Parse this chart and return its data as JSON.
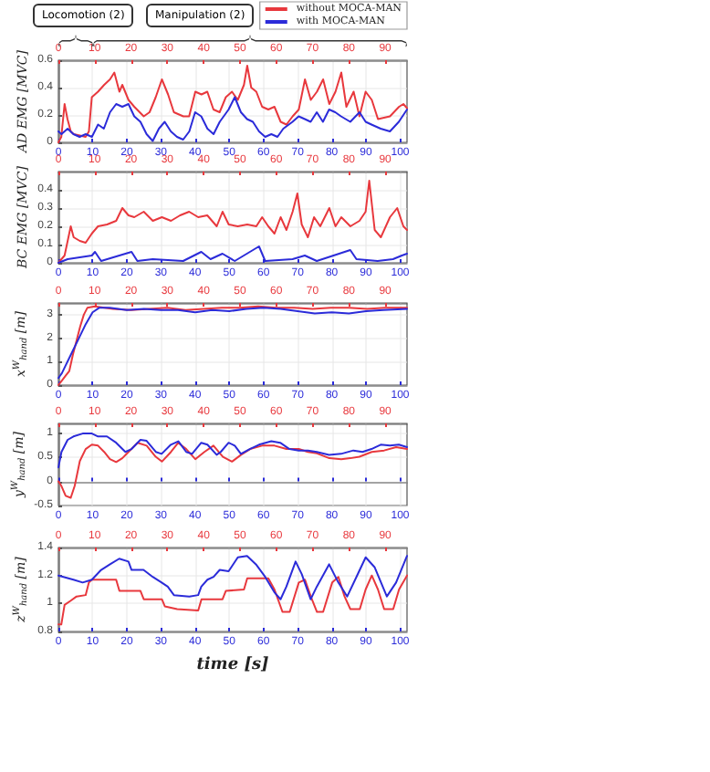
{
  "chart_data": [
    {
      "type": "line",
      "ylabel": "AD EMG [MVC]",
      "annotations": [
        "Locomotion (2)",
        "Manipulation (2)"
      ],
      "legend": "top right",
      "grid": true,
      "marker": "none",
      "xlim": [
        0,
        102
      ],
      "xticks": [
        0,
        10,
        20,
        30,
        40,
        50,
        60,
        70,
        80,
        90,
        100
      ],
      "x2lim": [
        0,
        96
      ],
      "x2ticks": [
        0,
        10,
        20,
        30,
        40,
        50,
        60,
        70,
        80,
        90
      ],
      "ylim": [
        0,
        0.6
      ],
      "yticks": [
        0,
        0.2,
        0.4,
        0.6
      ],
      "series": [
        {
          "name": "without MOCA-MAN",
          "color": "#e8383d",
          "axis": "x2",
          "x": [
            0,
            0.8,
            1.7,
            2.5,
            3.4,
            4.2,
            5.9,
            7.5,
            8.4,
            9.2,
            10.9,
            12.6,
            14.2,
            15.4,
            16.8,
            17.6,
            19.3,
            20.9,
            23.5,
            25.1,
            26.8,
            28.5,
            30.2,
            31.8,
            34.4,
            36,
            37.7,
            39.4,
            41,
            42.7,
            44.4,
            46.1,
            47.8,
            49.4,
            51.1,
            52,
            53.1,
            54.5,
            56.1,
            57.8,
            59.5,
            61.2,
            62.8,
            64.5,
            66.2,
            67.9,
            69.5,
            71.2,
            72.9,
            74.6,
            76.3,
            77.9,
            79.3,
            81.3,
            82.9,
            84.6,
            86.3,
            88,
            91.3,
            93.8,
            95,
            96
          ],
          "values": [
            0,
            0.04,
            0.28,
            0.17,
            0.08,
            0.06,
            0.05,
            0.04,
            0.08,
            0.33,
            0.37,
            0.42,
            0.46,
            0.51,
            0.37,
            0.42,
            0.31,
            0.26,
            0.19,
            0.22,
            0.33,
            0.46,
            0.35,
            0.22,
            0.19,
            0.19,
            0.37,
            0.35,
            0.37,
            0.24,
            0.22,
            0.33,
            0.37,
            0.31,
            0.42,
            0.56,
            0.4,
            0.37,
            0.26,
            0.24,
            0.26,
            0.15,
            0.13,
            0.19,
            0.24,
            0.46,
            0.31,
            0.37,
            0.46,
            0.28,
            0.37,
            0.51,
            0.26,
            0.37,
            0.19,
            0.37,
            0.31,
            0.17,
            0.19,
            0.26,
            0.28,
            0.25
          ]
        },
        {
          "name": "with MOCA-MAN",
          "color": "#2b2bd9",
          "x": [
            0,
            0.9,
            2.7,
            4.4,
            6.2,
            8,
            9.8,
            11.6,
            13.3,
            15.1,
            16.9,
            18.7,
            20.5,
            22.2,
            24,
            25.8,
            27.6,
            29.4,
            31.1,
            32.9,
            34.7,
            36.5,
            38.3,
            40,
            41.8,
            43.6,
            45.4,
            47.2,
            49.8,
            51.6,
            53.4,
            55.2,
            56.9,
            58.7,
            60.5,
            62.3,
            64.1,
            65.8,
            68.5,
            70.3,
            72.1,
            73.8,
            75.6,
            77.4,
            79.2,
            81,
            82.7,
            85.4,
            88.1,
            89.9,
            91.6,
            94.3,
            97,
            99.6,
            102
          ],
          "values": [
            0.08,
            0.06,
            0.1,
            0.06,
            0.04,
            0.06,
            0.04,
            0.13,
            0.1,
            0.22,
            0.28,
            0.26,
            0.28,
            0.19,
            0.15,
            0.06,
            0.01,
            0.1,
            0.15,
            0.08,
            0.04,
            0.02,
            0.08,
            0.22,
            0.19,
            0.1,
            0.06,
            0.15,
            0.24,
            0.33,
            0.22,
            0.17,
            0.15,
            0.08,
            0.04,
            0.06,
            0.04,
            0.1,
            0.15,
            0.19,
            0.17,
            0.15,
            0.22,
            0.15,
            0.24,
            0.22,
            0.19,
            0.15,
            0.22,
            0.15,
            0.13,
            0.1,
            0.08,
            0.15,
            0.24
          ]
        }
      ]
    },
    {
      "type": "line",
      "ylabel": "BC EMG [MVC]",
      "grid": true,
      "marker": "none",
      "xlim": [
        0,
        102
      ],
      "xticks": [
        0,
        10,
        20,
        30,
        40,
        50,
        60,
        70,
        80,
        90,
        100
      ],
      "x2lim": [
        0,
        96
      ],
      "x2ticks": [
        0,
        10,
        20,
        30,
        40,
        50,
        60,
        70,
        80,
        90
      ],
      "ylim": [
        0,
        0.5
      ],
      "yticks": [
        0,
        0.1,
        0.2,
        0.3,
        0.4
      ],
      "series": [
        {
          "color": "#e8383d",
          "axis": "x2",
          "x": [
            0,
            1.7,
            3.4,
            4.2,
            5.9,
            7.5,
            9.2,
            10.9,
            13.4,
            15.9,
            17.6,
            19.3,
            20.9,
            23.5,
            26,
            28.5,
            31,
            33.5,
            36,
            38.5,
            41,
            43.6,
            45.2,
            46.9,
            49.4,
            52,
            54.5,
            56.1,
            57.8,
            59.5,
            61.2,
            62.8,
            64.5,
            65.8,
            67,
            68.7,
            70.4,
            72.1,
            74.6,
            76.3,
            77.9,
            80.4,
            82.9,
            84.6,
            85.6,
            87.1,
            88.8,
            91.3,
            93.3,
            95,
            96
          ],
          "values": [
            0,
            0.04,
            0.2,
            0.14,
            0.12,
            0.11,
            0.16,
            0.2,
            0.21,
            0.23,
            0.3,
            0.26,
            0.25,
            0.28,
            0.23,
            0.25,
            0.23,
            0.26,
            0.28,
            0.25,
            0.26,
            0.2,
            0.28,
            0.21,
            0.2,
            0.21,
            0.2,
            0.25,
            0.2,
            0.16,
            0.25,
            0.18,
            0.28,
            0.38,
            0.21,
            0.14,
            0.25,
            0.2,
            0.3,
            0.2,
            0.25,
            0.2,
            0.23,
            0.28,
            0.45,
            0.18,
            0.14,
            0.25,
            0.3,
            0.2,
            0.18
          ]
        },
        {
          "color": "#2b2bd9",
          "x": [
            0,
            2.7,
            9.8,
            10.7,
            12.5,
            21.4,
            23.1,
            27.6,
            36.5,
            41.8,
            44.5,
            48,
            51.6,
            58.7,
            60.5,
            68.5,
            72.1,
            75.6,
            85.4,
            87.2,
            93.4,
            97.9,
            100.5,
            102
          ],
          "values": [
            0,
            0.02,
            0.04,
            0.06,
            0.01,
            0.06,
            0.01,
            0.02,
            0.01,
            0.06,
            0.02,
            0.05,
            0.01,
            0.09,
            0.01,
            0.02,
            0.04,
            0.01,
            0.07,
            0.02,
            0.01,
            0.02,
            0.04,
            0.05
          ]
        }
      ]
    },
    {
      "type": "line",
      "ylabel": "x$^{W}$$_{hand}$ [m]",
      "grid": true,
      "marker": "none",
      "xlim": [
        0,
        102
      ],
      "xticks": [
        0,
        10,
        20,
        30,
        40,
        50,
        60,
        70,
        80,
        90,
        100
      ],
      "x2lim": [
        0,
        96
      ],
      "x2ticks": [
        0,
        10,
        20,
        30,
        40,
        50,
        60,
        70,
        80,
        90
      ],
      "ylim": [
        0,
        3.5
      ],
      "yticks": [
        0,
        1,
        2,
        3
      ],
      "series": [
        {
          "color": "#e8383d",
          "axis": "x2",
          "x": [
            0,
            1,
            2,
            3,
            4,
            5,
            6,
            7,
            8,
            10,
            15,
            20,
            25,
            30,
            35,
            40,
            45,
            50,
            55,
            60,
            65,
            70,
            75,
            80,
            85,
            90,
            96
          ],
          "values": [
            0,
            0.2,
            0.4,
            0.6,
            1.3,
            1.9,
            2.5,
            3.0,
            3.3,
            3.35,
            3.25,
            3.2,
            3.25,
            3.3,
            3.2,
            3.25,
            3.3,
            3.3,
            3.35,
            3.3,
            3.3,
            3.25,
            3.3,
            3.3,
            3.25,
            3.3,
            3.3
          ]
        },
        {
          "color": "#2b2bd9",
          "x": [
            0,
            1,
            2,
            4,
            6,
            8,
            10,
            12,
            15,
            20,
            25,
            30,
            35,
            40,
            45,
            50,
            55,
            60,
            65,
            70,
            75,
            80,
            85,
            90,
            95,
            102
          ],
          "values": [
            0.3,
            0.5,
            0.8,
            1.4,
            2.0,
            2.6,
            3.1,
            3.3,
            3.3,
            3.2,
            3.25,
            3.2,
            3.2,
            3.1,
            3.2,
            3.15,
            3.25,
            3.3,
            3.25,
            3.15,
            3.05,
            3.1,
            3.05,
            3.15,
            3.2,
            3.25
          ]
        }
      ]
    },
    {
      "type": "line",
      "ylabel": "y$^{W}$$_{hand}$ [m]",
      "grid": true,
      "marker": "none",
      "xlim": [
        0,
        102
      ],
      "xticks": [
        0,
        10,
        20,
        30,
        40,
        50,
        60,
        70,
        80,
        90,
        100
      ],
      "x2lim": [
        0,
        96
      ],
      "x2ticks": [
        0,
        10,
        20,
        30,
        40,
        50,
        60,
        70,
        80,
        90
      ],
      "ylim": [
        -0.5,
        1.2
      ],
      "yticks": [
        -0.5,
        0,
        0.5,
        1
      ],
      "series": [
        {
          "color": "#e8383d",
          "axis": "x2",
          "x": [
            0,
            0.8,
            2,
            3.4,
            4.5,
            5.9,
            7.5,
            9.2,
            10.9,
            12.6,
            14.2,
            15.9,
            17.6,
            19.3,
            21.8,
            24.3,
            26.8,
            28.5,
            31,
            33,
            35.2,
            37.7,
            40.2,
            42.7,
            45.3,
            47.8,
            50.3,
            52.8,
            56.1,
            59.5,
            62.8,
            66.2,
            68.7,
            71.2,
            74.6,
            77.9,
            80.4,
            82.9,
            86.3,
            89.7,
            93,
            96
          ],
          "values": [
            0,
            -0.09,
            -0.3,
            -0.34,
            -0.09,
            0.42,
            0.67,
            0.76,
            0.74,
            0.61,
            0.46,
            0.4,
            0.48,
            0.61,
            0.8,
            0.74,
            0.51,
            0.41,
            0.61,
            0.8,
            0.67,
            0.46,
            0.61,
            0.74,
            0.51,
            0.41,
            0.55,
            0.67,
            0.74,
            0.74,
            0.67,
            0.67,
            0.61,
            0.58,
            0.48,
            0.46,
            0.48,
            0.51,
            0.61,
            0.64,
            0.71,
            0.67
          ]
        },
        {
          "color": "#2b2bd9",
          "x": [
            0,
            0.9,
            2.7,
            4.4,
            7.1,
            9.8,
            11.6,
            14.2,
            16.9,
            19.6,
            21.4,
            24,
            25.8,
            28.5,
            30.2,
            32.9,
            35.1,
            37.4,
            39.1,
            41.8,
            43.6,
            46.3,
            47.5,
            49.8,
            51.6,
            53.4,
            56,
            58.7,
            62.3,
            64.9,
            67.6,
            70.3,
            73,
            75.6,
            79.2,
            82.7,
            86.3,
            89,
            91.6,
            94.3,
            97,
            99.6,
            102
          ],
          "values": [
            0.29,
            0.61,
            0.86,
            0.93,
            0.99,
            0.99,
            0.93,
            0.93,
            0.8,
            0.61,
            0.67,
            0.86,
            0.84,
            0.61,
            0.57,
            0.76,
            0.83,
            0.61,
            0.57,
            0.8,
            0.76,
            0.55,
            0.61,
            0.8,
            0.74,
            0.57,
            0.67,
            0.76,
            0.83,
            0.8,
            0.67,
            0.64,
            0.64,
            0.61,
            0.55,
            0.57,
            0.64,
            0.61,
            0.67,
            0.76,
            0.74,
            0.76,
            0.71
          ]
        }
      ]
    },
    {
      "type": "line",
      "ylabel": "z$^{W}$$_{hand}$ [m]",
      "xlabel": "time [s]",
      "grid": true,
      "marker": "none",
      "xlim": [
        0,
        102
      ],
      "xticks": [
        0,
        10,
        20,
        30,
        40,
        50,
        60,
        70,
        80,
        90,
        100
      ],
      "x2lim": [
        0,
        96
      ],
      "x2ticks": [
        0,
        10,
        20,
        30,
        40,
        50,
        60,
        70,
        80,
        90
      ],
      "ylim": [
        0.8,
        1.4
      ],
      "yticks": [
        0.8,
        1,
        1.2,
        1.4
      ],
      "series": [
        {
          "color": "#e8383d",
          "axis": "x2",
          "x": [
            0,
            0.8,
            1.7,
            3.4,
            5,
            7.5,
            8.4,
            9.2,
            10.9,
            15.9,
            16.8,
            22.6,
            23.5,
            28.5,
            29.3,
            32.7,
            38.5,
            39.4,
            45.2,
            46.1,
            51.1,
            52,
            57.8,
            59.5,
            61.7,
            63.7,
            66.2,
            67.9,
            69.5,
            71.2,
            72.9,
            75.4,
            77.1,
            78.8,
            80.4,
            83,
            84.6,
            86.3,
            88,
            89.7,
            92.2,
            93.8,
            96
          ],
          "values": [
            0.85,
            0.85,
            0.99,
            1.02,
            1.05,
            1.06,
            1.15,
            1.17,
            1.17,
            1.17,
            1.09,
            1.09,
            1.03,
            1.03,
            0.98,
            0.96,
            0.95,
            1.03,
            1.03,
            1.09,
            1.1,
            1.18,
            1.18,
            1.1,
            0.94,
            0.94,
            1.15,
            1.17,
            1.05,
            0.94,
            0.94,
            1.15,
            1.19,
            1.05,
            0.96,
            0.96,
            1.1,
            1.2,
            1.1,
            0.96,
            0.96,
            1.1,
            1.2
          ]
        },
        {
          "color": "#2b2bd9",
          "x": [
            0,
            4.4,
            7.1,
            9.8,
            12.5,
            15.1,
            17.8,
            20.5,
            21.4,
            24.9,
            27.6,
            30.2,
            32,
            33.8,
            38.3,
            40.9,
            41.8,
            43.6,
            45.4,
            47.2,
            49.8,
            52.5,
            55.2,
            57.8,
            60.5,
            63.2,
            65,
            66.7,
            69.4,
            71.2,
            73.8,
            75.6,
            79.2,
            81.9,
            84.5,
            87.2,
            89.9,
            92.5,
            96.1,
            98.8,
            102
          ],
          "values": [
            1.2,
            1.17,
            1.15,
            1.17,
            1.24,
            1.28,
            1.32,
            1.3,
            1.24,
            1.24,
            1.19,
            1.15,
            1.12,
            1.06,
            1.05,
            1.06,
            1.12,
            1.17,
            1.19,
            1.24,
            1.23,
            1.33,
            1.34,
            1.28,
            1.19,
            1.08,
            1.03,
            1.12,
            1.3,
            1.21,
            1.03,
            1.12,
            1.28,
            1.15,
            1.05,
            1.19,
            1.33,
            1.26,
            1.05,
            1.15,
            1.34
          ]
        }
      ]
    }
  ]
}
